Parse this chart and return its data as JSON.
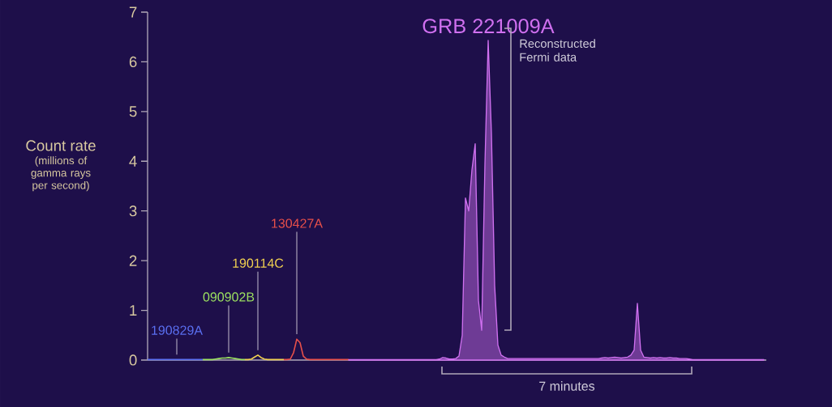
{
  "chart_data": {
    "type": "line",
    "ylabel": "Count rate",
    "annotations": [
      "(millions of gamma rays per second)",
      "Reconstructed Fermi data",
      "7 minutes"
    ],
    "ylim": [
      0,
      7
    ],
    "yticks": [
      0,
      1,
      2,
      3,
      4,
      5,
      6,
      7
    ],
    "categories": [
      null,
      null,
      null,
      null,
      null,
      null,
      null,
      null,
      null,
      null,
      null,
      null,
      null,
      null,
      null,
      null,
      null,
      null,
      null,
      null,
      null,
      null,
      null,
      null,
      null,
      null,
      null,
      null,
      null,
      null,
      null,
      null,
      null,
      null,
      null,
      null,
      null,
      null,
      null,
      null,
      null,
      null,
      null,
      null,
      null,
      null,
      null,
      null,
      null,
      null,
      null,
      null,
      null,
      null,
      null,
      null,
      null,
      null,
      null,
      null,
      null,
      null,
      null,
      null,
      null,
      null,
      null,
      null,
      null,
      null,
      null,
      null,
      null,
      null,
      null,
      null,
      null,
      null,
      null,
      null,
      null,
      null,
      null,
      null,
      null,
      null,
      null,
      null,
      null,
      null,
      null,
      null,
      null,
      null,
      null,
      null,
      null,
      null,
      null,
      null,
      null,
      null,
      null,
      null,
      null,
      null,
      null,
      null,
      null,
      null,
      null,
      null,
      null,
      null,
      null,
      null,
      null,
      null,
      null,
      null,
      null,
      null,
      null,
      null,
      null,
      null,
      null,
      null,
      null,
      null,
      null,
      null,
      null,
      null,
      null,
      null,
      null,
      null,
      null,
      null,
      null,
      null,
      null,
      null,
      null,
      null,
      null,
      null,
      null,
      null,
      null,
      null,
      null,
      null,
      null,
      null,
      null,
      null,
      null,
      null,
      null,
      null,
      null,
      null,
      null,
      null,
      null,
      null,
      null,
      null,
      null,
      null,
      null,
      null,
      null,
      null,
      null,
      null,
      null,
      null,
      null,
      null,
      null,
      null,
      null,
      null,
      null,
      null,
      null,
      null,
      null
    ],
    "series": [
      {
        "name": "190829A",
        "color": "#5a6ff0",
        "values": [
          0.01,
          0.01,
          0.01,
          0.01,
          0.01,
          0.01,
          0.01,
          0.01,
          0.01,
          0.01,
          0.01,
          0.01,
          0.01,
          0.01,
          0.01,
          0.01,
          0.01,
          0.01,
          null,
          null,
          null,
          null,
          null,
          null,
          null,
          null,
          null,
          null,
          null,
          null,
          null,
          null,
          null,
          null,
          null,
          null,
          null,
          null,
          null,
          null,
          null,
          null,
          null,
          null,
          null,
          null,
          null,
          null,
          null,
          null,
          null,
          null,
          null,
          null,
          null,
          null,
          null,
          null,
          null,
          null,
          null,
          null,
          null,
          null,
          null,
          null,
          null,
          null,
          null,
          null,
          null,
          null,
          null,
          null,
          null,
          null,
          null,
          null,
          null,
          null,
          null,
          null,
          null,
          null,
          null,
          null,
          null,
          null,
          null,
          null,
          null,
          null,
          null,
          null,
          null,
          null,
          null,
          null,
          null,
          null,
          null,
          null,
          null,
          null,
          null,
          null,
          null,
          null,
          null,
          null,
          null,
          null,
          null,
          null,
          null,
          null,
          null,
          null,
          null,
          null,
          null,
          null,
          null,
          null,
          null,
          null,
          null,
          null,
          null,
          null,
          null,
          null,
          null,
          null,
          null,
          null,
          null,
          null,
          null,
          null,
          null,
          null,
          null,
          null,
          null,
          null,
          null,
          null,
          null,
          null,
          null,
          null,
          null,
          null,
          null,
          null,
          null,
          null,
          null,
          null,
          null,
          null,
          null,
          null,
          null,
          null,
          null,
          null,
          null,
          null,
          null,
          null,
          null,
          null,
          null,
          null,
          null,
          null,
          null,
          null,
          null,
          null,
          null,
          null,
          null,
          null,
          null,
          null,
          null,
          null,
          null
        ]
      },
      {
        "name": "090902B",
        "color": "#9be060",
        "values": [
          null,
          null,
          null,
          null,
          null,
          null,
          null,
          null,
          null,
          null,
          null,
          null,
          null,
          null,
          null,
          null,
          null,
          0.01,
          0.01,
          0.01,
          0.01,
          0.02,
          0.03,
          0.04,
          0.04,
          0.05,
          0.04,
          0.03,
          0.02,
          0.01,
          0.01,
          null,
          null,
          null,
          null,
          null,
          null,
          null,
          null,
          null,
          null,
          null,
          null,
          null,
          null,
          null,
          null,
          null,
          null,
          null,
          null,
          null,
          null,
          null,
          null,
          null,
          null,
          null,
          null,
          null,
          null,
          null,
          null,
          null,
          null,
          null,
          null,
          null,
          null,
          null,
          null,
          null,
          null,
          null,
          null,
          null,
          null,
          null,
          null,
          null,
          null,
          null,
          null,
          null,
          null,
          null,
          null,
          null,
          null,
          null,
          null,
          null,
          null,
          null,
          null,
          null,
          null,
          null,
          null,
          null,
          null,
          null,
          null,
          null,
          null,
          null,
          null,
          null,
          null,
          null,
          null,
          null,
          null,
          null,
          null,
          null,
          null,
          null,
          null,
          null,
          null,
          null,
          null,
          null,
          null,
          null,
          null,
          null,
          null,
          null,
          null,
          null,
          null,
          null,
          null,
          null,
          null,
          null,
          null,
          null,
          null,
          null,
          null,
          null,
          null,
          null,
          null,
          null,
          null,
          null,
          null,
          null,
          null,
          null,
          null,
          null,
          null,
          null,
          null,
          null,
          null,
          null,
          null,
          null,
          null,
          null,
          null,
          null,
          null,
          null,
          null,
          null,
          null,
          null,
          null,
          null,
          null,
          null,
          null,
          null,
          null,
          null,
          null,
          null,
          null,
          null,
          null,
          null,
          null,
          null,
          null
        ]
      },
      {
        "name": "190114C",
        "color": "#f0d050",
        "values": [
          null,
          null,
          null,
          null,
          null,
          null,
          null,
          null,
          null,
          null,
          null,
          null,
          null,
          null,
          null,
          null,
          null,
          null,
          null,
          null,
          null,
          null,
          null,
          null,
          null,
          null,
          null,
          null,
          null,
          null,
          0.01,
          0.01,
          0.02,
          0.06,
          0.1,
          0.05,
          0.02,
          0.01,
          0.01,
          0.01,
          0.01,
          0.01,
          0.01,
          null,
          null,
          null,
          null,
          null,
          null,
          null,
          null,
          null,
          null,
          null,
          null,
          null,
          null,
          null,
          null,
          null,
          null,
          null,
          null,
          null,
          null,
          null,
          null,
          null,
          null,
          null,
          null,
          null,
          null,
          null,
          null,
          null,
          null,
          null,
          null,
          null,
          null,
          null,
          null,
          null,
          null,
          null,
          null,
          null,
          null,
          null,
          null,
          null,
          null,
          null,
          null,
          null,
          null,
          null,
          null,
          null,
          null,
          null,
          null,
          null,
          null,
          null,
          null,
          null,
          null,
          null,
          null,
          null,
          null,
          null,
          null,
          null,
          null,
          null,
          null,
          null,
          null,
          null,
          null,
          null,
          null,
          null,
          null,
          null,
          null,
          null,
          null,
          null,
          null,
          null,
          null,
          null,
          null,
          null,
          null,
          null,
          null,
          null,
          null,
          null,
          null,
          null,
          null,
          null,
          null,
          null,
          null,
          null,
          null,
          null,
          null,
          null,
          null,
          null,
          null,
          null,
          null,
          null,
          null,
          null,
          null,
          null,
          null,
          null,
          null,
          null,
          null,
          null,
          null,
          null,
          null,
          null,
          null,
          null,
          null,
          null,
          null,
          null,
          null,
          null,
          null,
          null,
          null,
          null,
          null,
          null,
          null
        ]
      },
      {
        "name": "130427A",
        "color": "#e8504a",
        "values": [
          null,
          null,
          null,
          null,
          null,
          null,
          null,
          null,
          null,
          null,
          null,
          null,
          null,
          null,
          null,
          null,
          null,
          null,
          null,
          null,
          null,
          null,
          null,
          null,
          null,
          null,
          null,
          null,
          null,
          null,
          null,
          null,
          null,
          null,
          null,
          null,
          null,
          null,
          null,
          null,
          null,
          null,
          0.01,
          0.01,
          0.02,
          0.15,
          0.42,
          0.35,
          0.08,
          0.02,
          0.01,
          0.01,
          0.01,
          0.01,
          0.01,
          0.01,
          0.01,
          0.01,
          0.01,
          0.01,
          0.01,
          0.01,
          0.01,
          null,
          null,
          null,
          null,
          null,
          null,
          null,
          null,
          null,
          null,
          null,
          null,
          null,
          null,
          null,
          null,
          null,
          null,
          null,
          null,
          null,
          null,
          null,
          null,
          null,
          null,
          null,
          null,
          null,
          null,
          null,
          null,
          null,
          null,
          null,
          null,
          null,
          null,
          null,
          null,
          null,
          null,
          null,
          null,
          null,
          null,
          null,
          null,
          null,
          null,
          null,
          null,
          null,
          null,
          null,
          null,
          null,
          null,
          null,
          null,
          null,
          null,
          null,
          null,
          null,
          null,
          null,
          null,
          null,
          null,
          null,
          null,
          null,
          null,
          null,
          null,
          null,
          null,
          null,
          null,
          null,
          null,
          null,
          null,
          null,
          null,
          null,
          null,
          null,
          null,
          null,
          null,
          null,
          null,
          null,
          null,
          null,
          null,
          null,
          null,
          null,
          null,
          null,
          null,
          null,
          null,
          null,
          null,
          null,
          null,
          null,
          null,
          null,
          null,
          null,
          null,
          null,
          null,
          null,
          null,
          null,
          null,
          null,
          null,
          null,
          null,
          null,
          null
        ]
      },
      {
        "name": "GRB 221009A",
        "type": "area",
        "color": "#d070f0",
        "values": [
          null,
          null,
          null,
          null,
          null,
          null,
          null,
          null,
          null,
          null,
          null,
          null,
          null,
          null,
          null,
          null,
          null,
          null,
          null,
          null,
          null,
          null,
          null,
          null,
          null,
          null,
          null,
          null,
          null,
          null,
          null,
          null,
          null,
          null,
          null,
          null,
          null,
          null,
          null,
          null,
          null,
          null,
          null,
          null,
          null,
          null,
          null,
          null,
          null,
          null,
          null,
          null,
          null,
          null,
          null,
          null,
          null,
          null,
          null,
          null,
          null,
          null,
          0.01,
          0.01,
          0.01,
          0.01,
          0.01,
          0.01,
          0.01,
          0.01,
          0.01,
          0.01,
          0.01,
          0.01,
          0.01,
          0.01,
          0.01,
          0.01,
          0.01,
          0.01,
          0.01,
          0.01,
          0.01,
          0.01,
          0.01,
          0.01,
          0.01,
          0.01,
          0.01,
          0.01,
          0.02,
          0.05,
          0.04,
          0.02,
          0.02,
          0.03,
          0.08,
          0.5,
          3.26,
          3.0,
          3.83,
          4.35,
          1.2,
          0.6,
          3.94,
          6.43,
          4.56,
          1.5,
          0.3,
          0.1,
          0.06,
          0.03,
          0.03,
          0.03,
          0.03,
          0.03,
          0.03,
          0.03,
          0.03,
          0.03,
          0.03,
          0.03,
          0.03,
          0.03,
          0.03,
          0.03,
          0.03,
          0.03,
          0.03,
          0.03,
          0.03,
          0.03,
          0.03,
          0.03,
          0.03,
          0.03,
          0.03,
          0.03,
          0.03,
          0.03,
          0.04,
          0.05,
          0.04,
          0.05,
          0.06,
          0.05,
          0.04,
          0.05,
          0.06,
          0.1,
          0.2,
          1.14,
          0.2,
          0.06,
          0.05,
          0.04,
          0.05,
          0.04,
          0.05,
          0.04,
          0.04,
          0.05,
          0.04,
          0.04,
          0.03,
          0.03,
          0.03,
          0.02,
          0.01,
          0.01,
          0.01,
          0.01,
          0.01,
          0.01,
          0.01,
          0.01,
          0.01,
          0.01,
          0.01,
          0.01,
          0.01,
          0.01,
          0.01,
          0.01,
          0.01,
          0.01,
          0.01,
          0.01,
          0.01,
          0.01,
          0.01
        ]
      }
    ]
  }
}
